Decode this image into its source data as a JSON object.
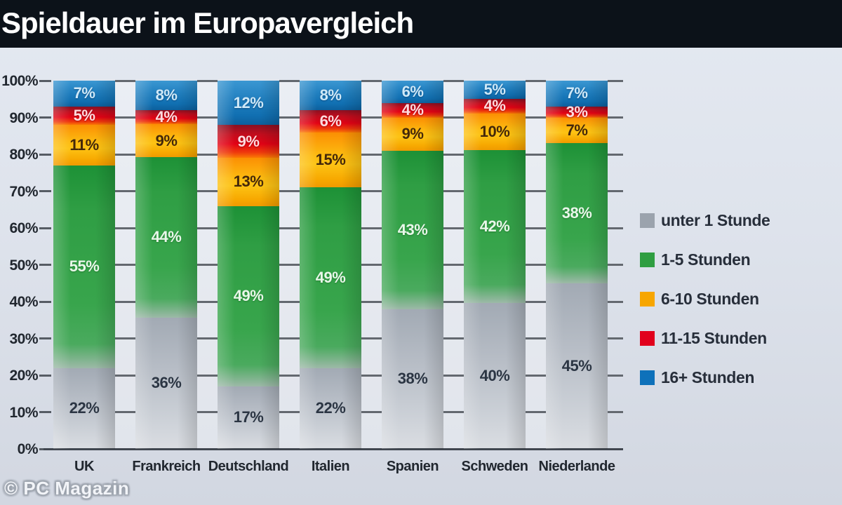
{
  "header": {
    "title": "Spieldauer im Europavergleich"
  },
  "footer": {
    "copyright": "© PC Magazin"
  },
  "chart_data": {
    "type": "bar",
    "stacked": true,
    "title": "Spieldauer im Europavergleich",
    "unit": "%",
    "categories": [
      "UK",
      "Frankreich",
      "Deutschland",
      "Italien",
      "Spanien",
      "Schweden",
      "Niederlande"
    ],
    "series": [
      {
        "name": "unter 1 Stunde",
        "key": "gray",
        "color": "#9ba3ad",
        "values": [
          22,
          36,
          17,
          22,
          38,
          40,
          45
        ]
      },
      {
        "name": "1-5 Stunden",
        "key": "green",
        "color": "#2f9e41",
        "values": [
          55,
          44,
          49,
          49,
          43,
          42,
          38
        ]
      },
      {
        "name": "6-10 Stunden",
        "key": "orange",
        "color": "#f7a600",
        "values": [
          11,
          9,
          13,
          15,
          9,
          10,
          7
        ]
      },
      {
        "name": "11-15 Stunden",
        "key": "red",
        "color": "#e1001c",
        "values": [
          5,
          4,
          9,
          6,
          4,
          4,
          3
        ]
      },
      {
        "name": "16+ Stunden",
        "key": "blue",
        "color": "#0e71ba",
        "values": [
          7,
          8,
          12,
          8,
          6,
          5,
          7
        ]
      }
    ],
    "y_axis": {
      "min": 0,
      "max": 100,
      "tick_labels": [
        "0%",
        "10%",
        "20%",
        "30%",
        "40%",
        "50%",
        "60%",
        "70%",
        "80%",
        "90%",
        "100%"
      ]
    },
    "gridlines": true,
    "legend_position": "right"
  }
}
